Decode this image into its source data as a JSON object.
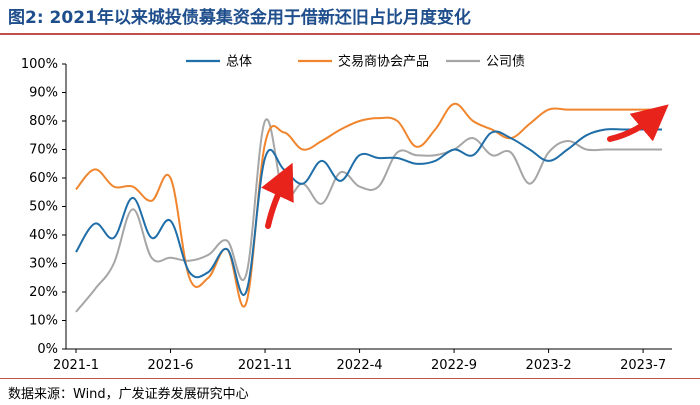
{
  "title": "图2:  2021年以来城投债募集资金用于借新还旧占比月度变化",
  "source": "数据来源：Wind，广发证券发展研究中心",
  "colors": {
    "series_0": "#1f6ea8",
    "series_1": "#f0852d",
    "series_2": "#a6a6a6",
    "arrow": "#e8231b"
  },
  "chart_data": {
    "type": "line",
    "x": [
      "2021-1",
      "2021-2",
      "2021-3",
      "2021-4",
      "2021-5",
      "2021-6",
      "2021-7",
      "2021-8",
      "2021-9",
      "2021-10",
      "2021-11",
      "2021-12",
      "2022-1",
      "2022-2",
      "2022-3",
      "2022-4",
      "2022-5",
      "2022-6",
      "2022-7",
      "2022-8",
      "2022-9",
      "2022-10",
      "2022-11",
      "2022-12",
      "2023-1",
      "2023-2",
      "2023-3",
      "2023-4",
      "2023-5",
      "2023-6",
      "2023-7",
      "2023-8"
    ],
    "x_tick_labels": [
      "2021-1",
      "2021-6",
      "2021-11",
      "2022-4",
      "2022-9",
      "2023-2",
      "2023-7"
    ],
    "y_tick_labels": [
      "0%",
      "10%",
      "20%",
      "30%",
      "40%",
      "50%",
      "60%",
      "70%",
      "80%",
      "90%",
      "100%"
    ],
    "ylim": [
      0,
      100
    ],
    "y_unit": "%",
    "legend_position": "top-center",
    "grid": false,
    "series": [
      {
        "name": "总体",
        "color": "#1f6ea8",
        "values": [
          34,
          44,
          39,
          53,
          39,
          45,
          27,
          27,
          35,
          20,
          67,
          63,
          58,
          66,
          59,
          68,
          67,
          67,
          65,
          66,
          70,
          68,
          76,
          74,
          70,
          66,
          70,
          75,
          77,
          77,
          77,
          77
        ]
      },
      {
        "name": "交易商协会产品",
        "color": "#f0852d",
        "values": [
          56,
          63,
          57,
          57,
          52,
          60,
          25,
          25,
          35,
          16,
          72,
          76,
          70,
          73,
          77,
          80,
          81,
          80,
          71,
          77,
          86,
          80,
          77,
          74,
          79,
          84,
          84,
          84,
          84,
          84,
          84,
          84
        ]
      },
      {
        "name": "公司债",
        "color": "#a6a6a6",
        "values": [
          13,
          21,
          30,
          49,
          32,
          32,
          31,
          33,
          38,
          26,
          80,
          54,
          58,
          51,
          62,
          57,
          57,
          69,
          68,
          68,
          70,
          74,
          68,
          69,
          58,
          69,
          73,
          70,
          70,
          70,
          70,
          70
        ]
      }
    ]
  }
}
